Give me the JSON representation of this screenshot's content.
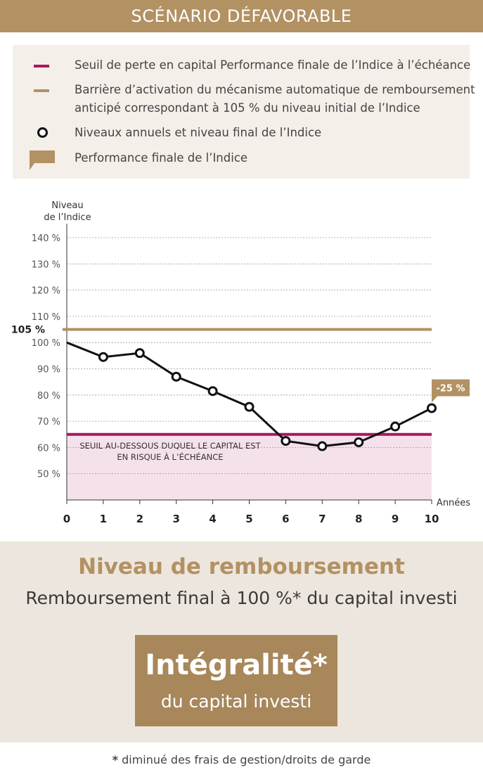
{
  "header": {
    "title": "SCÉNARIO DÉFAVORABLE"
  },
  "legend": {
    "items": [
      {
        "label": "Seuil de perte en capital Performance finale de l’Indice à l’échéance",
        "color": "#a8175e"
      },
      {
        "label": "Barrière d’activation du mécanisme automatique de remboursement",
        "label2": "anticipé correspondant à 105 % du niveau initial de l’Indice",
        "color": "#b29163"
      },
      {
        "label": "Niveaux annuels et niveau final de l’Indice",
        "color": "#111111"
      },
      {
        "label": "Performance finale de l’Indice",
        "color": "#b29163"
      }
    ]
  },
  "chart_data": {
    "type": "line",
    "ylabel": "Niveau\nde l’Indice",
    "xlabel": "Années",
    "ylim": [
      40,
      140
    ],
    "ytick_labels": [
      "50 %",
      "60 %",
      "70 %",
      "80 %",
      "90 %",
      "100 %",
      "110 %",
      "120 %",
      "130 %",
      "140 %"
    ],
    "ytick_values": [
      50,
      60,
      70,
      80,
      90,
      100,
      110,
      120,
      130,
      140
    ],
    "x": [
      0,
      1,
      2,
      3,
      4,
      5,
      6,
      7,
      8,
      9,
      10
    ],
    "xtick_labels": [
      "0",
      "1",
      "2",
      "3",
      "4",
      "5",
      "6",
      "7",
      "8",
      "9",
      "10"
    ],
    "series": [
      {
        "values": [
          100,
          94.5,
          96,
          87,
          81.5,
          75.5,
          62.5,
          60.5,
          62,
          68,
          75
        ]
      }
    ],
    "barrier": {
      "value": 105,
      "label": "105 %",
      "color": "#b29163"
    },
    "threshold": {
      "value": 65,
      "color": "#a8175e",
      "zone_color": "#f5e1ec",
      "label_line1": "SEUIL AU-DESSOUS DUQUEL LE CAPITAL EST",
      "label_line2": "EN RISQUE À L’ÉCHÉANCE"
    },
    "final_performance": {
      "label": "-25 %",
      "color": "#b29163"
    },
    "grid": true
  },
  "bottom": {
    "title": "Niveau de remboursement",
    "subtitle": "Remboursement final à 100 %* du capital investi",
    "box_big": "Intégralité*",
    "box_small": "du capital investi"
  },
  "footnote": {
    "star": "*",
    "text": " diminué des frais de gestion/droits de garde"
  }
}
